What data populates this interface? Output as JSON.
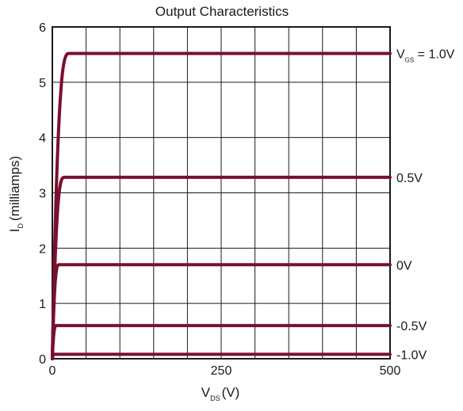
{
  "chart_data": {
    "type": "line",
    "title": "Output Characteristics",
    "xlabel": {
      "main": "V",
      "sub": "DS",
      "suffix": "(V)"
    },
    "ylabel": {
      "main": "I",
      "sub": "D",
      "suffix": "(milliamps)"
    },
    "xlim": [
      0,
      500
    ],
    "ylim": [
      0,
      6
    ],
    "x_ticks": [
      {
        "value": 0,
        "label": "0"
      },
      {
        "value": 250,
        "label": "250"
      },
      {
        "value": 500,
        "label": "500"
      }
    ],
    "y_ticks": [
      {
        "value": 0,
        "label": "0"
      },
      {
        "value": 1,
        "label": "1"
      },
      {
        "value": 2,
        "label": "2"
      },
      {
        "value": 3,
        "label": "3"
      },
      {
        "value": 4,
        "label": "4"
      },
      {
        "value": 5,
        "label": "5"
      },
      {
        "value": 6,
        "label": "6"
      }
    ],
    "x_grid_step": 50,
    "y_grid_step": 1,
    "grid": true,
    "line_color": "#7a0f2e",
    "series": [
      {
        "name": "1.0V",
        "label": {
          "main": "V",
          "sub": "GS",
          "suffix": " = 1.0V"
        },
        "saturation": 5.52,
        "knee": 25
      },
      {
        "name": "0.5V",
        "label": {
          "main": "0.5V"
        },
        "saturation": 3.28,
        "knee": 18
      },
      {
        "name": "0V",
        "label": {
          "main": "0V"
        },
        "saturation": 1.7,
        "knee": 10
      },
      {
        "name": "-0.5V",
        "label": {
          "main": "-0.5V"
        },
        "saturation": 0.6,
        "knee": 6
      },
      {
        "name": "-1.0V",
        "label": {
          "main": "-1.0V"
        },
        "saturation": 0.08,
        "knee": 3
      }
    ]
  }
}
